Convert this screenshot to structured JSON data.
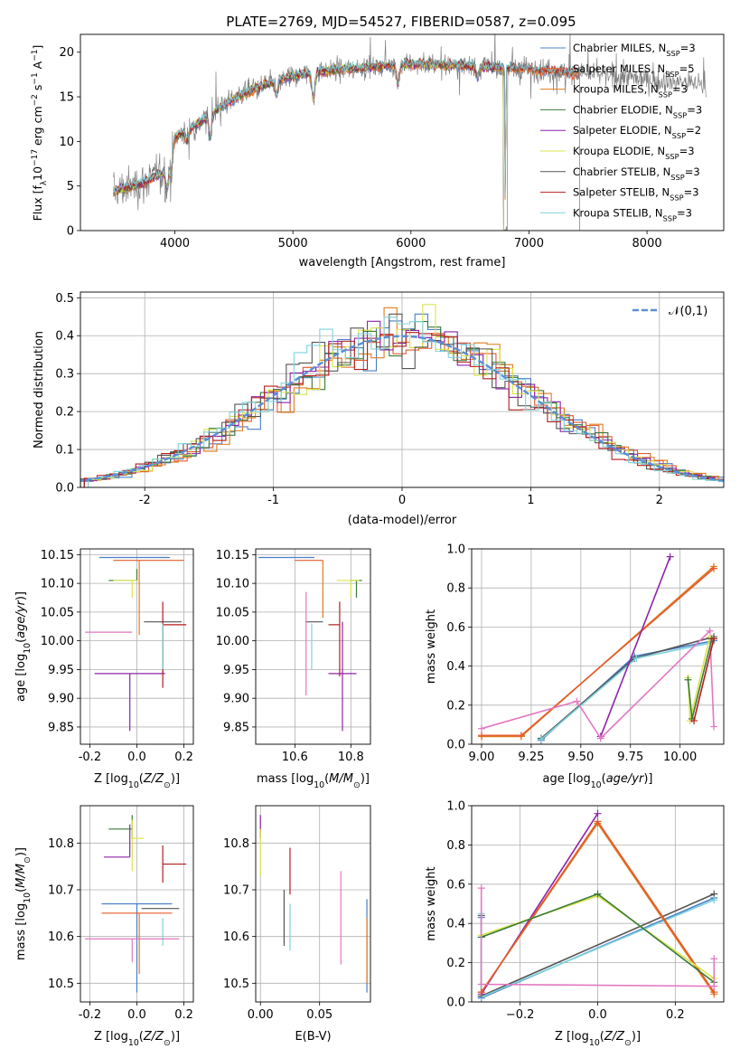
{
  "figure": {
    "title": "PLATE=2769, MJD=54527, FIBERID=0587, z=0.095"
  },
  "colors": {
    "Chabrier MILES": "#4c7fc7",
    "Salpeter MILES": "#e35b2d",
    "Kroupa MILES": "#e07b1f",
    "Chabrier ELODIE": "#3a7a3a",
    "Salpeter ELODIE": "#8e24aa",
    "Kroupa ELODIE": "#d9e44a",
    "Chabrier STELIB": "#555555",
    "Salpeter STELIB": "#b71c1c",
    "Kroupa STELIB": "#7fd3dc",
    "spectrum": "#808080",
    "gaussian": "#5b8fd6",
    "pink": "#e377c2",
    "lightgreen": "#b8e06a"
  },
  "chart_data": [
    {
      "id": "spectrum",
      "type": "line",
      "title": "PLATE=2769, MJD=54527, FIBERID=0587, z=0.095",
      "xlabel": "wavelength [Angstrom, rest frame]",
      "ylabel": "Flux [f_λ 10^-17 erg cm^-2 s^-1 A^-1]",
      "xlim": [
        3200,
        8650
      ],
      "ylim": [
        0,
        22
      ],
      "xticks": [
        4000,
        5000,
        6000,
        7000,
        8000
      ],
      "yticks": [
        0,
        5,
        10,
        15,
        20
      ],
      "legend_position": "right",
      "legend": [
        {
          "label": "Chabrier MILES, N",
          "sub": "SSP",
          "n": "=3",
          "color_key": "Chabrier MILES"
        },
        {
          "label": "Salpeter MILES, N",
          "sub": "SSP",
          "n": "=5",
          "color_key": "Salpeter MILES"
        },
        {
          "label": "Kroupa MILES, N",
          "sub": "SSP",
          "n": "=3",
          "color_key": "Kroupa MILES"
        },
        {
          "label": "Chabrier ELODIE, N",
          "sub": "SSP",
          "n": "=3",
          "color_key": "Chabrier ELODIE"
        },
        {
          "label": "Salpeter ELODIE, N",
          "sub": "SSP",
          "n": "=2",
          "color_key": "Salpeter ELODIE"
        },
        {
          "label": "Kroupa ELODIE, N",
          "sub": "SSP",
          "n": "=3",
          "color_key": "Kroupa ELODIE"
        },
        {
          "label": "Chabrier STELIB, N",
          "sub": "SSP",
          "n": "=3",
          "color_key": "Chabrier STELIB"
        },
        {
          "label": "Salpeter STELIB, N",
          "sub": "SSP",
          "n": "=3",
          "color_key": "Salpeter STELIB"
        },
        {
          "label": "Kroupa STELIB, N",
          "sub": "SSP",
          "n": "=3",
          "color_key": "Kroupa STELIB"
        }
      ],
      "continuum": [
        [
          3500,
          4.5
        ],
        [
          3700,
          5.2
        ],
        [
          3900,
          6.5
        ],
        [
          3950,
          7.5
        ],
        [
          4000,
          10.5
        ],
        [
          4200,
          12.0
        ],
        [
          4400,
          14.0
        ],
        [
          4600,
          15.5
        ],
        [
          4800,
          16.5
        ],
        [
          5000,
          17.3
        ],
        [
          5200,
          17.8
        ],
        [
          5500,
          18.2
        ],
        [
          5800,
          18.5
        ],
        [
          6000,
          18.7
        ],
        [
          6300,
          18.6
        ],
        [
          6600,
          18.4
        ],
        [
          7000,
          18.1
        ],
        [
          7400,
          17.7
        ]
      ],
      "spectrum_range": [
        3480,
        8500
      ],
      "model_range": [
        3480,
        7430
      ],
      "dips": [
        [
          3934,
          2.5
        ],
        [
          3969,
          2.0
        ],
        [
          4102,
          1.2
        ],
        [
          4300,
          2.5
        ],
        [
          4861,
          1.5
        ],
        [
          5175,
          3.0
        ],
        [
          5890,
          2.0
        ],
        [
          6563,
          1.2
        ],
        [
          6800,
          18.0
        ]
      ]
    },
    {
      "id": "residuals",
      "type": "bar",
      "xlabel": "(data-model)/error",
      "ylabel": "Normed distribution",
      "xlim": [
        -2.5,
        2.5
      ],
      "ylim": [
        0,
        0.515
      ],
      "xticks": [
        -2,
        -1,
        0,
        1,
        2
      ],
      "yticks": [
        0.0,
        0.1,
        0.2,
        0.3,
        0.4,
        0.5
      ],
      "legend": "𝒩(0,1)",
      "legend_position": "top-right",
      "bin_width": 0.1
    },
    {
      "id": "age_vs_Z",
      "type": "scatter",
      "xlabel": "Z [log10(Z/Z☉)]",
      "ylabel": "age  [log10(age/yr)]",
      "xlim": [
        -0.24,
        0.24
      ],
      "ylim": [
        9.82,
        10.16
      ],
      "xticks": [
        -0.2,
        0.0,
        0.2
      ],
      "yticks": [
        9.85,
        9.9,
        9.95,
        10.0,
        10.05,
        10.1,
        10.15
      ],
      "points": [
        {
          "c": "Chabrier MILES",
          "x": 0.02,
          "xe": [
            0.18,
            0.12
          ],
          "y": 10.145,
          "ye": [
            0.0,
            0.0
          ]
        },
        {
          "c": "Salpeter MILES",
          "x": 0.05,
          "xe": [
            0.15,
            0.15
          ],
          "y": 10.14,
          "ye": [
            0.0,
            0.0
          ]
        },
        {
          "c": "Kroupa MILES",
          "x": 0.01,
          "xe": [
            0.0,
            0.0
          ],
          "y": 10.14,
          "ye": [
            0.13,
            0.0
          ]
        },
        {
          "c": "Chabrier ELODIE",
          "x": 0.0,
          "xe": [
            0.12,
            0.0
          ],
          "y": 10.105,
          "ye": [
            0.0,
            0.02
          ]
        },
        {
          "c": "Kroupa ELODIE",
          "x": -0.02,
          "xe": [
            0.08,
            0.02
          ],
          "y": 10.105,
          "ye": [
            0.03,
            0.0
          ]
        },
        {
          "c": "Salpeter ELODIE",
          "x": -0.03,
          "xe": [
            0.15,
            0.15
          ],
          "y": 9.943,
          "ye": [
            0.1,
            0.0
          ]
        },
        {
          "c": "Chabrier STELIB",
          "x": 0.11,
          "xe": [
            0.08,
            0.08
          ],
          "y": 10.033,
          "ye": [
            0.09,
            0.0
          ]
        },
        {
          "c": "Salpeter STELIB",
          "x": 0.11,
          "xe": [
            0.0,
            0.1
          ],
          "y": 10.028,
          "ye": [
            0.11,
            0.04
          ]
        },
        {
          "c": "Kroupa STELIB",
          "x": 0.11,
          "xe": [
            0.0,
            0.0
          ],
          "y": 10.03,
          "ye": [
            0.08,
            0.0
          ]
        },
        {
          "c": "pink",
          "x": -0.02,
          "xe": [
            0.2,
            0.0
          ],
          "y": 10.015,
          "ye": [
            0.0,
            0.0
          ]
        }
      ]
    },
    {
      "id": "age_vs_mass",
      "type": "scatter",
      "xlabel": "mass [log10(M/M☉)]",
      "ylabel": "",
      "xlim": [
        10.46,
        10.87
      ],
      "ylim": [
        9.82,
        10.16
      ],
      "xticks": [
        10.6,
        10.8
      ],
      "yticks": [
        9.85,
        9.9,
        9.95,
        10.0,
        10.05,
        10.1,
        10.15
      ],
      "points": [
        {
          "c": "Chabrier MILES",
          "x": 10.67,
          "xe": [
            0.2,
            0.0
          ],
          "y": 10.145,
          "ye": [
            0.0,
            0.0
          ]
        },
        {
          "c": "Salpeter MILES",
          "x": 10.7,
          "xe": [
            0.1,
            0.0
          ],
          "y": 10.14,
          "ye": [
            0.0,
            0.0
          ]
        },
        {
          "c": "Kroupa MILES",
          "x": 10.7,
          "xe": [
            0.0,
            0.0
          ],
          "y": 10.14,
          "ye": [
            0.1,
            0.0
          ]
        },
        {
          "c": "Chabrier ELODIE",
          "x": 10.82,
          "xe": [
            0.02,
            0.02
          ],
          "y": 10.105,
          "ye": [
            0.03,
            0.0
          ]
        },
        {
          "c": "Kroupa ELODIE",
          "x": 10.8,
          "xe": [
            0.05,
            0.03
          ],
          "y": 10.105,
          "ye": [
            0.03,
            0.0
          ]
        },
        {
          "c": "Salpeter ELODIE",
          "x": 10.77,
          "xe": [
            0.05,
            0.05
          ],
          "y": 9.943,
          "ye": [
            0.1,
            0.09
          ]
        },
        {
          "c": "Chabrier STELIB",
          "x": 10.67,
          "xe": [
            0.03,
            0.03
          ],
          "y": 10.033,
          "ye": [
            0.0,
            0.0
          ]
        },
        {
          "c": "Salpeter STELIB",
          "x": 10.76,
          "xe": [
            0.04,
            0.0
          ],
          "y": 10.028,
          "ye": [
            0.09,
            0.04
          ]
        },
        {
          "c": "Kroupa STELIB",
          "x": 10.66,
          "xe": [
            0.0,
            0.0
          ],
          "y": 10.03,
          "ye": [
            0.08,
            0.0
          ]
        },
        {
          "c": "pink",
          "x": 10.64,
          "xe": [
            0.0,
            0.0
          ],
          "y": 10.015,
          "ye": [
            0.11,
            0.07
          ]
        }
      ]
    },
    {
      "id": "massweight_vs_age",
      "type": "line",
      "xlabel": "age  [log10(age/yr)]",
      "ylabel": "mass weight",
      "xlim": [
        8.95,
        10.22
      ],
      "ylim": [
        0.0,
        1.0
      ],
      "xticks": [
        9.0,
        9.25,
        9.5,
        9.75,
        10.0
      ],
      "yticks": [
        0.0,
        0.2,
        0.4,
        0.6,
        0.8,
        1.0
      ],
      "series": [
        {
          "c": "Chabrier MILES",
          "x": [
            9.3,
            9.77,
            10.17
          ],
          "y": [
            0.02,
            0.45,
            0.53
          ]
        },
        {
          "c": "Kroupa MILES",
          "x": [
            9.0,
            9.2,
            10.17
          ],
          "y": [
            0.04,
            0.04,
            0.91
          ]
        },
        {
          "c": "Salpeter MILES",
          "x": [
            9.0,
            9.2,
            10.17
          ],
          "y": [
            0.045,
            0.045,
            0.9
          ]
        },
        {
          "c": "Chabrier STELIB",
          "x": [
            9.3,
            9.77,
            10.17
          ],
          "y": [
            0.03,
            0.44,
            0.55
          ]
        },
        {
          "c": "Kroupa STELIB",
          "x": [
            9.3,
            9.78,
            10.16
          ],
          "y": [
            0.025,
            0.44,
            0.52
          ]
        },
        {
          "c": "Salpeter ELODIE",
          "x": [
            9.6,
            9.95
          ],
          "y": [
            0.04,
            0.96
          ]
        },
        {
          "c": "pink",
          "x": [
            9.0,
            9.48,
            9.6,
            10.15,
            10.17
          ],
          "y": [
            0.08,
            0.22,
            0.03,
            0.58,
            0.09
          ]
        },
        {
          "c": "Kroupa ELODIE",
          "x": [
            10.04,
            10.05,
            10.15
          ],
          "y": [
            0.34,
            0.12,
            0.55
          ]
        },
        {
          "c": "Chabrier ELODIE",
          "x": [
            10.04,
            10.06,
            10.16
          ],
          "y": [
            0.33,
            0.13,
            0.54
          ]
        },
        {
          "c": "Salpeter STELIB",
          "x": [
            10.07,
            10.17
          ],
          "y": [
            0.12,
            0.54
          ]
        }
      ]
    },
    {
      "id": "mass_vs_Z",
      "type": "scatter",
      "xlabel": "Z [log10(Z/Z☉)]",
      "ylabel": "mass [log10(M/M☉)]",
      "xlim": [
        -0.24,
        0.24
      ],
      "ylim": [
        10.46,
        10.88
      ],
      "xticks": [
        -0.2,
        0.0,
        0.2
      ],
      "yticks": [
        10.5,
        10.6,
        10.7,
        10.8
      ],
      "points": [
        {
          "c": "Chabrier ELODIE",
          "x": -0.02,
          "xe": [
            0.1,
            0.0
          ],
          "y": 10.83,
          "ye": [
            0.02,
            0.03
          ]
        },
        {
          "c": "Kroupa ELODIE",
          "x": -0.02,
          "xe": [
            0.0,
            0.05
          ],
          "y": 10.81,
          "ye": [
            0.07,
            0.04
          ]
        },
        {
          "c": "Salpeter ELODIE",
          "x": -0.03,
          "xe": [
            0.11,
            0.0
          ],
          "y": 10.77,
          "ye": [
            0.0,
            0.07
          ]
        },
        {
          "c": "Salpeter STELIB",
          "x": 0.11,
          "xe": [
            0.0,
            0.1
          ],
          "y": 10.755,
          "ye": [
            0.04,
            0.04
          ]
        },
        {
          "c": "Chabrier MILES",
          "x": 0.0,
          "xe": [
            0.15,
            0.15
          ],
          "y": 10.67,
          "ye": [
            0.19,
            0.0
          ]
        },
        {
          "c": "Chabrier STELIB",
          "x": 0.11,
          "xe": [
            0.09,
            0.07
          ],
          "y": 10.66,
          "ye": [
            0.0,
            0.0
          ]
        },
        {
          "c": "Kroupa STELIB",
          "x": 0.11,
          "xe": [
            0.0,
            0.0
          ],
          "y": 10.64,
          "ye": [
            0.06,
            0.0
          ]
        },
        {
          "c": "Salpeter MILES",
          "x": 0.0,
          "xe": [
            0.15,
            0.15
          ],
          "y": 10.65,
          "ye": [
            0.0,
            0.0
          ]
        },
        {
          "c": "Kroupa MILES",
          "x": 0.01,
          "xe": [
            0.0,
            0.0
          ],
          "y": 10.65,
          "ye": [
            0.13,
            0.0
          ]
        },
        {
          "c": "pink",
          "x": -0.02,
          "xe": [
            0.2,
            0.2
          ],
          "y": 10.595,
          "ye": [
            0.05,
            0.0
          ]
        }
      ]
    },
    {
      "id": "mass_vs_ebv",
      "type": "scatter",
      "xlabel": "E(B-V)",
      "ylabel": "",
      "xlim": [
        -0.004,
        0.093
      ],
      "ylim": [
        10.46,
        10.88
      ],
      "xticks": [
        0.0,
        0.05
      ],
      "yticks": [
        10.5,
        10.6,
        10.7,
        10.8
      ],
      "points": [
        {
          "c": "Salpeter ELODIE",
          "x": 0.0,
          "xe": [
            0,
            0
          ],
          "y": 10.84,
          "ye": [
            0.03,
            0.02
          ]
        },
        {
          "c": "Kroupa ELODIE",
          "x": 0.0,
          "xe": [
            0,
            0
          ],
          "y": 10.8,
          "ye": [
            0.07,
            0.03
          ]
        },
        {
          "c": "Salpeter STELIB",
          "x": 0.025,
          "xe": [
            0,
            0
          ],
          "y": 10.74,
          "ye": [
            0.05,
            0.05
          ]
        },
        {
          "c": "Chabrier STELIB",
          "x": 0.02,
          "xe": [
            0,
            0
          ],
          "y": 10.64,
          "ye": [
            0.06,
            0.06
          ]
        },
        {
          "c": "Kroupa STELIB",
          "x": 0.025,
          "xe": [
            0,
            0
          ],
          "y": 10.62,
          "ye": [
            0.05,
            0.05
          ]
        },
        {
          "c": "pink",
          "x": 0.068,
          "xe": [
            0,
            0
          ],
          "y": 10.64,
          "ye": [
            0.1,
            0.1
          ]
        },
        {
          "c": "Chabrier MILES",
          "x": 0.09,
          "xe": [
            0,
            0
          ],
          "y": 10.58,
          "ye": [
            0.1,
            0.1
          ]
        },
        {
          "c": "Kroupa MILES",
          "x": 0.09,
          "xe": [
            0,
            0
          ],
          "y": 10.57,
          "ye": [
            0.07,
            0.07
          ]
        }
      ]
    },
    {
      "id": "massweight_vs_Z",
      "type": "line",
      "xlabel": "Z [log10(Z/Z☉)]",
      "ylabel": "mass weight",
      "xlim": [
        -0.325,
        0.325
      ],
      "ylim": [
        0.0,
        1.0
      ],
      "xticks": [
        -0.2,
        0.0,
        0.2
      ],
      "yticks": [
        0.0,
        0.2,
        0.4,
        0.6,
        0.8,
        1.0
      ],
      "series": [
        {
          "c": "Chabrier MILES",
          "x": [
            -0.3,
            -0.3,
            0.3
          ],
          "y": [
            0.43,
            0.02,
            0.53
          ]
        },
        {
          "c": "Chabrier STELIB",
          "x": [
            -0.3,
            -0.3,
            0.3
          ],
          "y": [
            0.44,
            0.03,
            0.55
          ]
        },
        {
          "c": "Kroupa STELIB",
          "x": [
            -0.3,
            -0.3,
            0.3
          ],
          "y": [
            0.45,
            0.025,
            0.52
          ]
        },
        {
          "c": "Salpeter ELODIE",
          "x": [
            -0.3,
            0.0
          ],
          "y": [
            0.04,
            0.96
          ]
        },
        {
          "c": "Kroupa MILES",
          "x": [
            -0.3,
            0.0,
            0.3
          ],
          "y": [
            0.05,
            0.91,
            0.04
          ]
        },
        {
          "c": "Salpeter MILES",
          "x": [
            -0.3,
            0.0,
            0.3
          ],
          "y": [
            0.05,
            0.92,
            0.05
          ]
        },
        {
          "c": "Kroupa ELODIE",
          "x": [
            -0.3,
            0.0,
            0.3
          ],
          "y": [
            0.34,
            0.54,
            0.12
          ]
        },
        {
          "c": "Chabrier ELODIE",
          "x": [
            -0.3,
            0.0,
            0.3
          ],
          "y": [
            0.33,
            0.55,
            0.1
          ]
        },
        {
          "c": "pink",
          "x": [
            -0.3,
            -0.3,
            0.3,
            0.3
          ],
          "y": [
            0.58,
            0.09,
            0.08,
            0.22
          ]
        }
      ]
    }
  ]
}
